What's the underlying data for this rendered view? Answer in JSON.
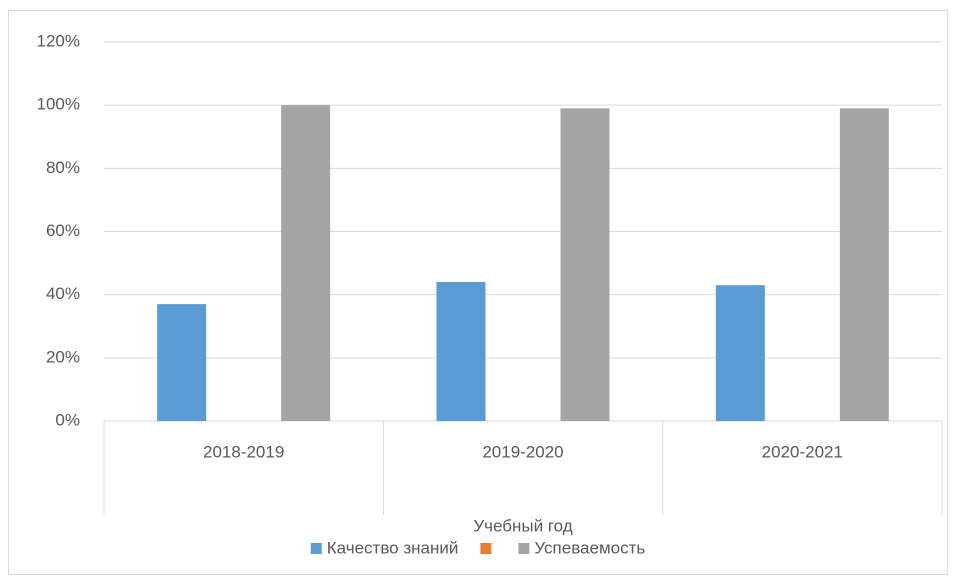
{
  "chart_data": {
    "type": "bar",
    "categories": [
      "2018-2019",
      "2019-2020",
      "2020-2021"
    ],
    "x_axis_label": "Учебный год",
    "series": [
      {
        "name": "Качество знаний",
        "color": "#5b9bd5",
        "values": [
          37,
          44,
          43
        ]
      },
      {
        "color": "#ed7d31",
        "values": [
          null,
          null,
          null
        ]
      },
      {
        "name": "Успеваемость",
        "color": "#a5a5a5",
        "values": [
          100,
          99,
          99
        ]
      }
    ],
    "ylim": [
      0,
      120
    ],
    "yticks": [
      {
        "value": 0,
        "label": "0%"
      },
      {
        "value": 20,
        "label": "20%"
      },
      {
        "value": 40,
        "label": "40%"
      },
      {
        "value": 60,
        "label": "60%"
      },
      {
        "value": 80,
        "label": "80%"
      },
      {
        "value": 100,
        "label": "100%"
      },
      {
        "value": 120,
        "label": "120%"
      }
    ],
    "grid": true,
    "legend": "bottom"
  }
}
